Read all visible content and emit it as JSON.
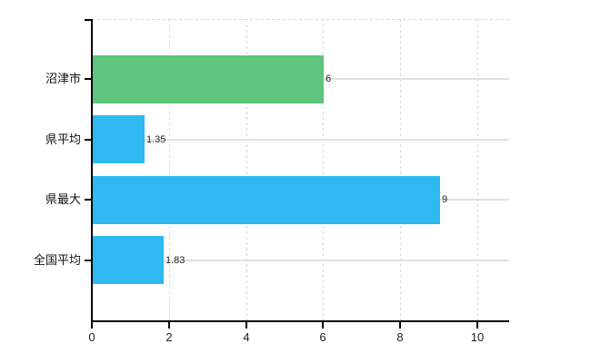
{
  "page": {
    "background": "#ffffff"
  },
  "chart_data": {
    "type": "bar",
    "orientation": "horizontal",
    "title": "",
    "xlabel": "",
    "ylabel": "",
    "categories": [
      "沼津市",
      "県平均",
      "県最大",
      "全国平均"
    ],
    "values": [
      6,
      1.35,
      9,
      1.83
    ],
    "value_labels": [
      "6",
      "1.35",
      "9",
      "1.83"
    ],
    "bar_colors": [
      "#5ec47e",
      "#2fb8f2",
      "#2fb8f2",
      "#2fb8f2"
    ],
    "x_ticks": [
      "0",
      "2",
      "4",
      "6",
      "8",
      "10"
    ],
    "x_tick_values": [
      0,
      2,
      4,
      6,
      8,
      10
    ],
    "xlim": [
      0,
      10.8
    ],
    "legend_position": "none",
    "grid": {
      "vertical_style": "dashed",
      "horizontal_style": "solid",
      "top_border_style": "dashed",
      "vertical_color": "#d8d8d8",
      "horizontal_color": "#dfe3df",
      "top_border_color": "#d6d6d6"
    },
    "colors": {
      "axis": "#000000",
      "tick_label": "#222222",
      "value_label": "#222222"
    }
  }
}
